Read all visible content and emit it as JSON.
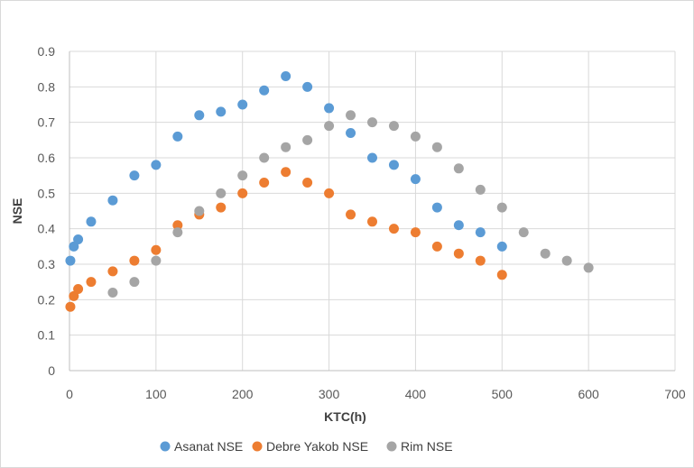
{
  "chart_data": {
    "type": "scatter",
    "title": "",
    "xlabel": "KTC(h)",
    "ylabel": "NSE",
    "xlim": [
      0,
      700
    ],
    "ylim": [
      0,
      0.9
    ],
    "xticks": [
      0,
      100,
      200,
      300,
      400,
      500,
      600,
      700
    ],
    "yticks": [
      0,
      0.1,
      0.2,
      0.3,
      0.4,
      0.5,
      0.6,
      0.7,
      0.8,
      0.9
    ],
    "grid": true,
    "legend_position": "bottom",
    "series": [
      {
        "name": "Asanat NSE",
        "color": "#5b9bd5",
        "x": [
          1,
          5,
          10,
          25,
          50,
          75,
          100,
          125,
          150,
          175,
          200,
          225,
          250,
          275,
          300,
          325,
          350,
          375,
          400,
          425,
          450,
          475,
          500
        ],
        "y": [
          0.31,
          0.35,
          0.37,
          0.42,
          0.48,
          0.55,
          0.58,
          0.66,
          0.72,
          0.73,
          0.75,
          0.79,
          0.83,
          0.8,
          0.74,
          0.67,
          0.6,
          0.58,
          0.54,
          0.46,
          0.41,
          0.39,
          0.35
        ]
      },
      {
        "name": "Debre Yakob NSE",
        "color": "#ed7d31",
        "x": [
          1,
          5,
          10,
          25,
          50,
          75,
          100,
          125,
          150,
          175,
          200,
          225,
          250,
          275,
          300,
          325,
          350,
          375,
          400,
          425,
          450,
          475,
          500
        ],
        "y": [
          0.18,
          0.21,
          0.23,
          0.25,
          0.28,
          0.31,
          0.34,
          0.41,
          0.44,
          0.46,
          0.5,
          0.53,
          0.56,
          0.53,
          0.5,
          0.44,
          0.42,
          0.4,
          0.39,
          0.35,
          0.33,
          0.31,
          0.27
        ]
      },
      {
        "name": "Rim NSE",
        "color": "#a5a5a5",
        "x": [
          50,
          75,
          100,
          125,
          150,
          175,
          200,
          225,
          250,
          275,
          300,
          325,
          350,
          375,
          400,
          425,
          450,
          475,
          500,
          525,
          550,
          575,
          600
        ],
        "y": [
          0.22,
          0.25,
          0.31,
          0.39,
          0.45,
          0.5,
          0.55,
          0.6,
          0.63,
          0.65,
          0.69,
          0.72,
          0.7,
          0.69,
          0.66,
          0.63,
          0.57,
          0.51,
          0.46,
          0.39,
          0.33,
          0.31,
          0.29
        ]
      }
    ]
  }
}
